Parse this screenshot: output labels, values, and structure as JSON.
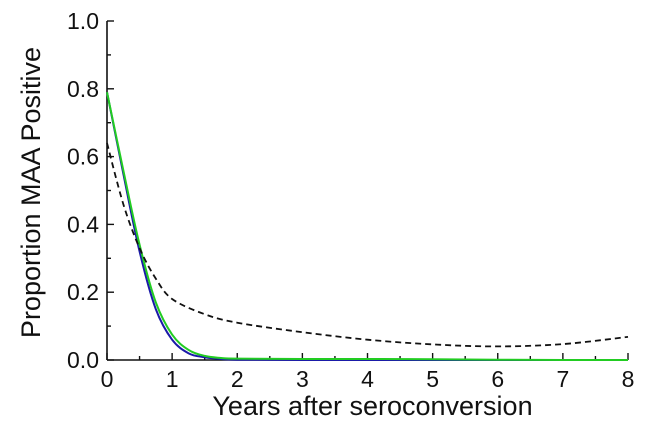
{
  "chart_data": {
    "type": "line",
    "title": "",
    "xlabel": "Years after seroconversion",
    "ylabel": "Proportion MAA Positive",
    "xlim": [
      0,
      8
    ],
    "ylim": [
      0,
      1.0
    ],
    "xticks": [
      "0",
      "1",
      "2",
      "3",
      "4",
      "5",
      "6",
      "7",
      "8"
    ],
    "yticks": [
      "0.0",
      "0.2",
      "0.4",
      "0.6",
      "0.8",
      "1.0"
    ],
    "grid": false,
    "legend": "none",
    "series": [
      {
        "color": "#1a1aa8",
        "style": "solid",
        "x": [
          0,
          0.25,
          0.5,
          0.75,
          1.0,
          1.25,
          1.5,
          1.75,
          2,
          3,
          4,
          5,
          6,
          7,
          8
        ],
        "y": [
          0.79,
          0.55,
          0.32,
          0.15,
          0.06,
          0.02,
          0.008,
          0.003,
          0.001,
          0,
          0,
          0,
          0,
          0,
          0
        ]
      },
      {
        "color": "#22cc22",
        "style": "solid",
        "x": [
          0,
          0.25,
          0.5,
          0.75,
          1.0,
          1.25,
          1.5,
          1.75,
          2,
          3,
          4,
          5,
          6,
          7,
          8
        ],
        "y": [
          0.79,
          0.56,
          0.34,
          0.17,
          0.075,
          0.03,
          0.012,
          0.006,
          0.004,
          0.003,
          0.003,
          0.002,
          0.001,
          0,
          0
        ]
      },
      {
        "color": "#111111",
        "style": "dashed",
        "x": [
          0,
          0.25,
          0.5,
          0.75,
          1.0,
          1.5,
          2,
          3,
          4,
          5,
          6,
          7,
          8
        ],
        "y": [
          0.64,
          0.46,
          0.33,
          0.24,
          0.18,
          0.135,
          0.11,
          0.082,
          0.06,
          0.046,
          0.04,
          0.047,
          0.068
        ]
      }
    ]
  }
}
